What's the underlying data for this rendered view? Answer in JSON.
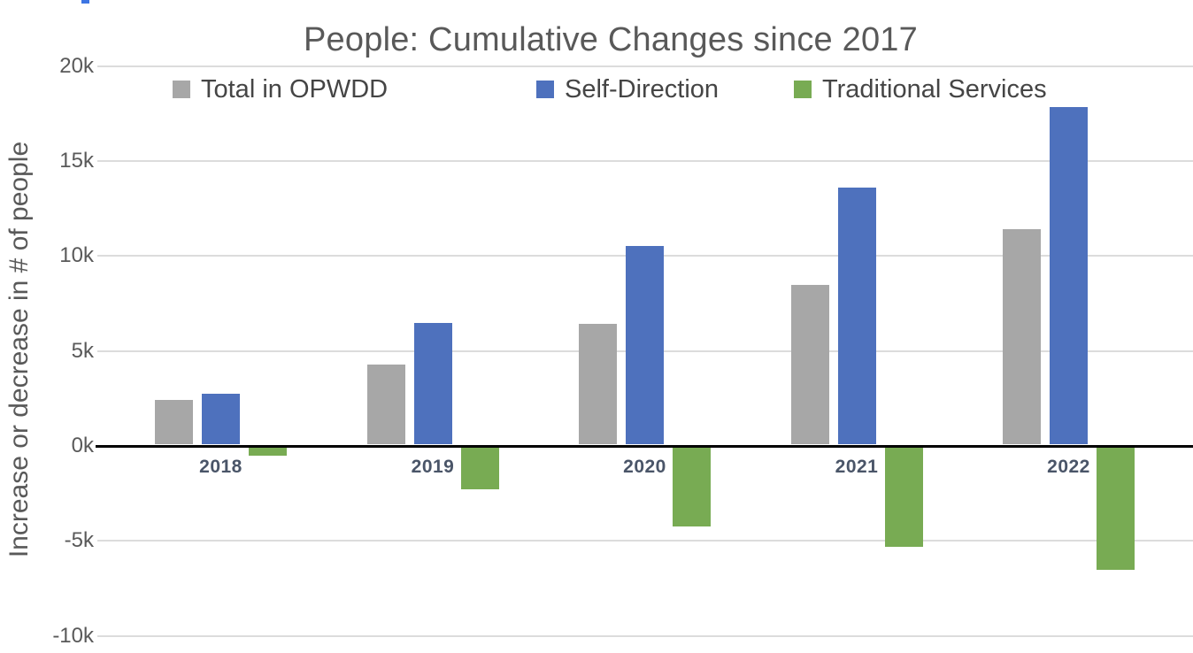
{
  "chart_data": {
    "type": "bar",
    "title": "People: Cumulative Changes since 2017",
    "ylabel": "Increase or decrease in # of people",
    "xlabel": "",
    "categories": [
      "2018",
      "2019",
      "2020",
      "2021",
      "2022"
    ],
    "series": [
      {
        "name": "Total in OPWDD",
        "color": "#a7a7a7",
        "values": [
          2350,
          4200,
          6350,
          8400,
          11350
        ]
      },
      {
        "name": "Self-Direction",
        "color": "#4e71bd",
        "values": [
          2700,
          6400,
          10450,
          13550,
          17800
        ]
      },
      {
        "name": "Traditional Services",
        "color": "#78ab53",
        "values": [
          -450,
          -2200,
          -4150,
          -5250,
          -6450
        ]
      }
    ],
    "yticks": [
      {
        "label": "20k",
        "value": 20000
      },
      {
        "label": "15k",
        "value": 15000
      },
      {
        "label": "10k",
        "value": 10000
      },
      {
        "label": "5k",
        "value": 5000
      },
      {
        "label": "0k",
        "value": 0
      },
      {
        "label": "-5k",
        "value": -5000
      },
      {
        "label": "-10k",
        "value": -10000
      }
    ],
    "ylim": [
      -10000,
      20000
    ],
    "grid": true,
    "legend_position": "top"
  },
  "colors": {
    "title_text": "#595959",
    "tick_text": "#595959",
    "x_label_text": "#4a5568",
    "legend_text": "#454545",
    "gridline": "#dcdcdc",
    "zero_axis": "#000000",
    "top_fragment": "#3d75e3"
  }
}
